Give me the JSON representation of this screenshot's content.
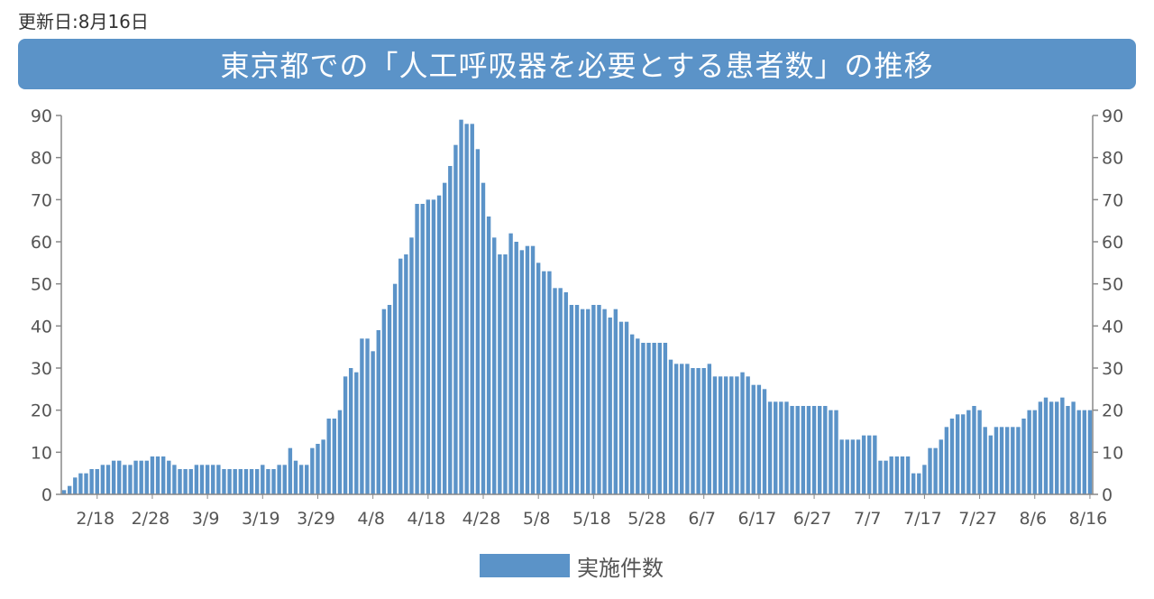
{
  "header": {
    "updated": "更新日:8月16日",
    "title": "東京都での「人工呼吸器を必要とする患者数」の推移"
  },
  "colors": {
    "bar": "#5b93c8",
    "title_bg": "#5b93c8",
    "axis": "#888888"
  },
  "chart_data": {
    "type": "bar",
    "title": "東京都での「人工呼吸器を必要とする患者数」の推移",
    "ylim": [
      0,
      90
    ],
    "y_ticks": [
      0,
      10,
      20,
      30,
      40,
      50,
      60,
      70,
      80,
      90
    ],
    "y_axis_sides": [
      "left",
      "right"
    ],
    "x_tick_labels": [
      "2/18",
      "2/28",
      "3/9",
      "3/19",
      "3/29",
      "4/8",
      "4/18",
      "4/28",
      "5/8",
      "5/18",
      "5/28",
      "6/7",
      "6/17",
      "6/27",
      "7/7",
      "7/17",
      "7/27",
      "8/6",
      "8/16"
    ],
    "x_tick_every_n_days": 10,
    "first_date": "2/14",
    "last_date": "8/16",
    "grid": false,
    "legend_position": "bottom",
    "series": [
      {
        "name": "実施件数",
        "values": [
          1,
          2,
          4,
          5,
          5,
          6,
          6,
          7,
          7,
          8,
          8,
          7,
          7,
          8,
          8,
          8,
          9,
          9,
          9,
          8,
          7,
          6,
          6,
          6,
          7,
          7,
          7,
          7,
          7,
          6,
          6,
          6,
          6,
          6,
          6,
          6,
          7,
          6,
          6,
          7,
          7,
          11,
          8,
          7,
          7,
          11,
          12,
          13,
          18,
          18,
          20,
          28,
          30,
          29,
          37,
          37,
          34,
          39,
          44,
          45,
          50,
          56,
          57,
          61,
          69,
          69,
          70,
          70,
          71,
          74,
          78,
          83,
          89,
          88,
          88,
          82,
          74,
          66,
          61,
          57,
          57,
          62,
          60,
          58,
          59,
          59,
          55,
          53,
          53,
          49,
          49,
          48,
          45,
          45,
          44,
          44,
          45,
          45,
          44,
          42,
          44,
          41,
          41,
          38,
          37,
          36,
          36,
          36,
          36,
          36,
          32,
          31,
          31,
          31,
          30,
          30,
          30,
          31,
          28,
          28,
          28,
          28,
          28,
          29,
          28,
          26,
          26,
          25,
          22,
          22,
          22,
          22,
          21,
          21,
          21,
          21,
          21,
          21,
          21,
          20,
          20,
          13,
          13,
          13,
          13,
          14,
          14,
          14,
          8,
          8,
          9,
          9,
          9,
          9,
          5,
          5,
          7,
          11,
          11,
          13,
          16,
          18,
          19,
          19,
          20,
          21,
          20,
          16,
          14,
          16,
          16,
          16,
          16,
          16,
          18,
          20,
          20,
          22,
          23,
          22,
          22,
          23,
          21,
          22,
          20,
          20,
          20
        ]
      }
    ]
  }
}
